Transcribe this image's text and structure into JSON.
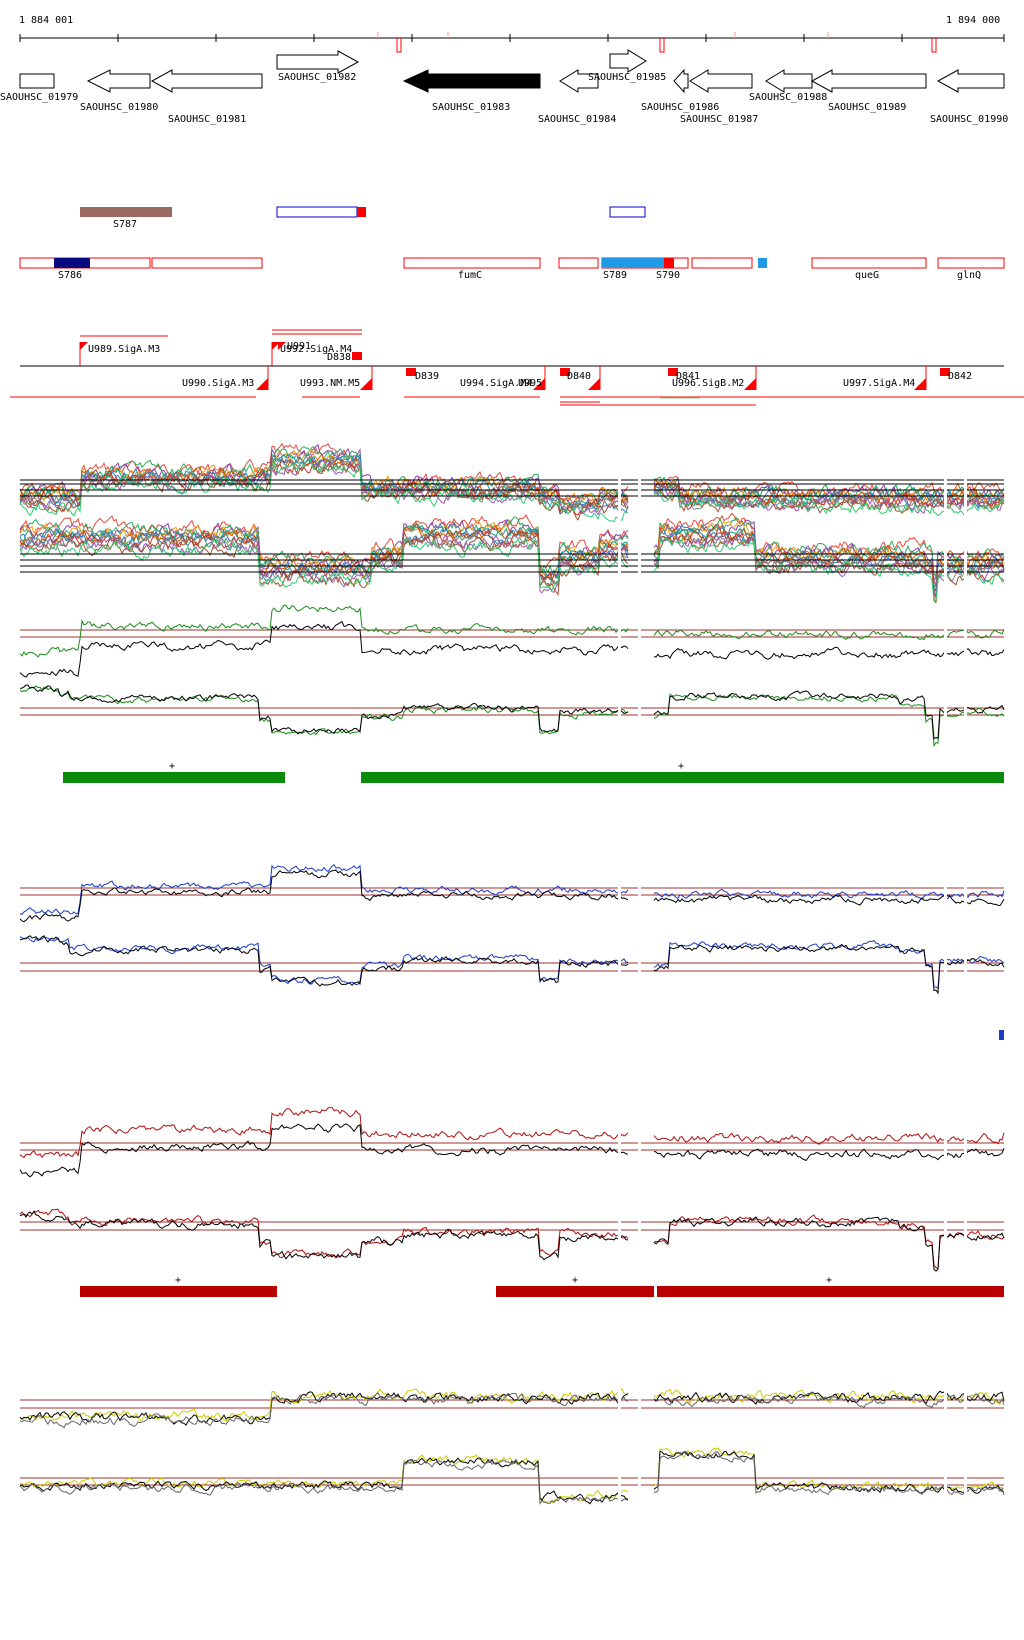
{
  "ruler": {
    "start_label": "1 884 001",
    "end_label": "1 894 000"
  },
  "genes": [
    {
      "name": "SAOUHSC_01979",
      "strand": "+",
      "filled": false
    },
    {
      "name": "SAOUHSC_01980",
      "strand": "-",
      "filled": false
    },
    {
      "name": "SAOUHSC_01981",
      "strand": "-",
      "filled": false
    },
    {
      "name": "SAOUHSC_01982",
      "strand": "+",
      "filled": false
    },
    {
      "name": "SAOUHSC_01983",
      "strand": "-",
      "filled": true
    },
    {
      "name": "SAOUHSC_01984",
      "strand": "-",
      "filled": false
    },
    {
      "name": "SAOUHSC_01985",
      "strand": "+",
      "filled": false
    },
    {
      "name": "SAOUHSC_01986",
      "strand": "-",
      "filled": false
    },
    {
      "name": "SAOUHSC_01987",
      "strand": "-",
      "filled": false
    },
    {
      "name": "SAOUHSC_01988",
      "strand": "-",
      "filled": false
    },
    {
      "name": "SAOUHSC_01989",
      "strand": "-",
      "filled": false
    },
    {
      "name": "SAOUHSC_01990",
      "strand": "-",
      "filled": false
    }
  ],
  "regions": [
    {
      "name": "S787",
      "color": "#9a6a62"
    },
    {
      "name": "S786",
      "color": "#0a0a80"
    },
    {
      "name": "fumC",
      "color": "#ff0000"
    },
    {
      "name": "S789",
      "color": "#1e9ae6"
    },
    {
      "name": "S790",
      "color": "#ff0000"
    },
    {
      "name": "queG",
      "color": "#ff0000"
    },
    {
      "name": "glnQ",
      "color": "#ff0000"
    }
  ],
  "promoters": [
    "U989.SigA.M3",
    "U992.SigA.M4",
    "U991",
    "D838",
    "U990.SigA.M3",
    "U993.NM.M5",
    "D839",
    "U994.SigA.M4",
    "U995",
    "D840",
    "D841",
    "U996.SigB.M2",
    "U997.SigA.M4",
    "D842"
  ],
  "tracks": [
    {
      "name": "expression-all-conditions",
      "color": "#888888"
    },
    {
      "name": "expression-green",
      "color": "#1a8c1a",
      "segment_label": "+"
    },
    {
      "name": "expression-blue",
      "color": "#1a3cc8"
    },
    {
      "name": "expression-red",
      "color": "#b01010",
      "segment_label": "+"
    },
    {
      "name": "expression-yellow",
      "color": "#cccc00"
    }
  ],
  "colors": {
    "red": "#ff0000",
    "green_bar": "#0a8a0a",
    "red_bar": "#b80000",
    "threshold": "#a0302c",
    "black": "#000000"
  }
}
